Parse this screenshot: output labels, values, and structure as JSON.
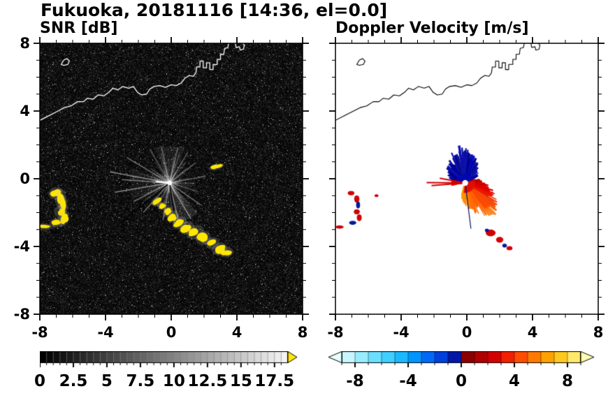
{
  "title": "Fukuoka, 20181116 [14:36, el=0.0]",
  "panels": {
    "snr": {
      "subtitle": "SNR [dB]"
    },
    "velocity": {
      "subtitle": "Doppler Velocity [m/s]"
    }
  },
  "axes": {
    "x_tick_values": [
      -8,
      -4,
      0,
      4,
      8
    ],
    "x_tick_labels": [
      "-8",
      "-4",
      "0",
      "4",
      "8"
    ],
    "y_tick_values": [
      8,
      4,
      0,
      -4,
      -8
    ],
    "y_tick_labels": [
      "8",
      "4",
      "0",
      "-4",
      "-8"
    ],
    "range": [
      -8,
      8
    ],
    "minor_step": 1
  },
  "colorbars": {
    "snr": {
      "min": 0,
      "max": 18.5,
      "segment": 0.5,
      "tick_values": [
        0,
        2.5,
        5,
        7.5,
        10,
        12.5,
        15,
        17.5
      ],
      "tick_labels": [
        "0",
        "2.5",
        "5",
        "7.5",
        "10",
        "12.5",
        "15",
        "17.5"
      ],
      "colormap": "grayscale black to white",
      "arrow_color": "#ffe800"
    },
    "velocity": {
      "min": -9,
      "max": 9,
      "segment": 1,
      "tick_values": [
        -8,
        -4,
        0,
        4,
        8
      ],
      "tick_labels": [
        "-8",
        "-4",
        "0",
        "4",
        "8"
      ],
      "left_arrow_color": "#e6ffff",
      "right_arrow_color": "#ffffb0",
      "colors": [
        "#c8f6ff",
        "#98ecff",
        "#6adfff",
        "#40cfff",
        "#1cb8ff",
        "#0096ff",
        "#006af8",
        "#0040dc",
        "#0018a8",
        "#8c0000",
        "#b00000",
        "#d40000",
        "#f22000",
        "#ff4e00",
        "#ff7a00",
        "#ffa200",
        "#ffc81e",
        "#ffe96a"
      ]
    }
  },
  "map": {
    "coastline_note": "coastline of Fukuoka bay across the north of the domain",
    "mainland": [
      [
        -8.0,
        3.45
      ],
      [
        -7.4,
        3.75
      ],
      [
        -7.0,
        3.95
      ],
      [
        -6.5,
        4.2
      ],
      [
        -6.1,
        4.3
      ],
      [
        -5.7,
        4.55
      ],
      [
        -5.35,
        4.55
      ],
      [
        -5.1,
        4.75
      ],
      [
        -4.75,
        4.7
      ],
      [
        -4.45,
        4.95
      ],
      [
        -4.1,
        4.9
      ],
      [
        -3.8,
        5.1
      ],
      [
        -3.55,
        5.35
      ],
      [
        -3.25,
        5.25
      ],
      [
        -2.95,
        5.45
      ],
      [
        -2.6,
        5.35
      ],
      [
        -2.3,
        5.45
      ],
      [
        -2.05,
        5.1
      ],
      [
        -1.8,
        4.95
      ],
      [
        -1.5,
        5.0
      ],
      [
        -1.3,
        5.3
      ],
      [
        -1.05,
        5.45
      ],
      [
        -0.7,
        5.5
      ],
      [
        -0.35,
        5.4
      ],
      [
        0.0,
        5.55
      ],
      [
        0.3,
        5.5
      ],
      [
        0.6,
        5.65
      ],
      [
        0.85,
        5.95
      ],
      [
        1.1,
        6.1
      ],
      [
        1.35,
        6.05
      ],
      [
        1.5,
        6.25
      ]
    ],
    "harbor": [
      [
        1.5,
        6.25
      ],
      [
        1.55,
        6.6
      ],
      [
        1.75,
        6.6
      ],
      [
        1.75,
        6.95
      ],
      [
        1.95,
        6.95
      ],
      [
        1.95,
        6.55
      ],
      [
        2.15,
        6.55
      ],
      [
        2.15,
        6.85
      ],
      [
        2.35,
        6.85
      ],
      [
        2.35,
        6.45
      ],
      [
        2.55,
        6.45
      ],
      [
        2.55,
        6.75
      ],
      [
        2.8,
        6.75
      ],
      [
        2.8,
        7.05
      ],
      [
        3.0,
        7.05
      ],
      [
        3.0,
        7.35
      ],
      [
        3.2,
        7.35
      ],
      [
        3.25,
        7.7
      ],
      [
        3.45,
        7.75
      ],
      [
        3.5,
        8.05
      ]
    ],
    "island": [
      [
        -6.7,
        6.75
      ],
      [
        -6.55,
        7.0
      ],
      [
        -6.35,
        7.1
      ],
      [
        -6.2,
        6.95
      ],
      [
        -6.3,
        6.75
      ],
      [
        -6.55,
        6.7
      ]
    ],
    "top_fragment": [
      [
        3.9,
        8.05
      ],
      [
        3.95,
        7.75
      ],
      [
        4.15,
        7.8
      ],
      [
        4.2,
        7.6
      ],
      [
        4.4,
        7.65
      ],
      [
        4.45,
        7.9
      ],
      [
        4.3,
        8.05
      ]
    ]
  },
  "chart_data": [
    {
      "type": "heatmap",
      "panel": "snr",
      "title": "SNR [dB]",
      "units": "dB",
      "xlim": [
        -8,
        8
      ],
      "ylim": [
        -8,
        8
      ],
      "background": "#000000",
      "coastline_color": "#ffffff",
      "radar_site": {
        "x": -0.1,
        "y": -0.25
      },
      "description": "Radar PPI of SNR: dark speckle-noise field, gray ground-clutter spokes radiating from the radar site, yellow (>17.5 dB) clutter patches in an arc southeast of the site and a cluster near x=-7 y=-1..-3, white coastline across the north.",
      "haze_wedges": [
        {
          "p1": [
            0.25,
            -2.6
          ],
          "p2": [
            1.75,
            -1.8
          ],
          "alpha": 0.1
        },
        {
          "p1": [
            -0.9,
            2.1
          ],
          "p2": [
            0.95,
            2.15
          ],
          "alpha": 0.07
        },
        {
          "p1": [
            -2.4,
            0.9
          ],
          "p2": [
            -2.3,
            -1.0
          ],
          "alpha": 0.05
        }
      ],
      "bright_spokes": [
        [
          -3.6,
          0.65,
          0.5
        ],
        [
          -3.35,
          -0.55,
          0.45
        ],
        [
          -2.6,
          1.5,
          0.4
        ],
        [
          -2.2,
          -1.1,
          0.4
        ],
        [
          -1.6,
          -1.75,
          0.38
        ],
        [
          -1.2,
          2.0,
          0.3
        ],
        [
          -0.5,
          2.15,
          0.32
        ],
        [
          0.5,
          2.1,
          0.3
        ],
        [
          1.1,
          1.8,
          0.3
        ],
        [
          1.6,
          1.2,
          0.3
        ],
        [
          2.2,
          0.4,
          0.32
        ],
        [
          1.9,
          -1.3,
          0.4
        ],
        [
          1.3,
          -2.1,
          0.45
        ],
        [
          0.6,
          -2.5,
          0.4
        ],
        [
          -0.4,
          -2.2,
          0.4
        ],
        [
          -2.9,
          0.2,
          0.45
        ]
      ],
      "shadow_lines": [
        [
          -2.95,
          -2.35
        ],
        [
          0.45,
          -2.95
        ]
      ],
      "center_flash": [
        -0.85,
        0.08
      ],
      "high_snr_value": ">17.5",
      "high_snr_color": "#ffe600",
      "high_snr_blobs": [
        [
          -7.05,
          -0.85,
          0.28,
          0.18,
          20
        ],
        [
          -6.75,
          -1.15,
          0.22,
          0.3,
          0
        ],
        [
          -6.6,
          -1.55,
          0.18,
          0.28,
          0
        ],
        [
          -6.75,
          -1.95,
          0.24,
          0.2,
          0
        ],
        [
          -6.55,
          -2.35,
          0.2,
          0.26,
          -20
        ],
        [
          -6.95,
          -2.6,
          0.3,
          0.15,
          10
        ],
        [
          -7.75,
          -2.85,
          0.3,
          0.12,
          0
        ],
        [
          -0.9,
          -1.35,
          0.22,
          0.14,
          35
        ],
        [
          -0.55,
          -1.6,
          0.18,
          0.12,
          35
        ],
        [
          -0.2,
          -1.95,
          0.22,
          0.15,
          40
        ],
        [
          0.1,
          -2.25,
          0.25,
          0.16,
          40
        ],
        [
          0.5,
          -2.6,
          0.3,
          0.18,
          35
        ],
        [
          0.95,
          -2.9,
          0.3,
          0.2,
          30
        ],
        [
          1.45,
          -3.15,
          0.35,
          0.2,
          25
        ],
        [
          1.95,
          -3.5,
          0.3,
          0.22,
          25
        ],
        [
          2.5,
          -3.8,
          0.28,
          0.18,
          20
        ],
        [
          2.95,
          -4.15,
          0.3,
          0.2,
          20
        ],
        [
          3.4,
          -4.35,
          0.25,
          0.15,
          15
        ],
        [
          2.75,
          0.7,
          0.3,
          0.1,
          15
        ]
      ]
    },
    {
      "type": "heatmap",
      "panel": "velocity",
      "title": "Doppler Velocity [m/s]",
      "units": "m/s",
      "xlim": [
        -8,
        8
      ],
      "ylim": [
        -8,
        8
      ],
      "background": "#ffffff",
      "coastline_color": "#000000",
      "radar_site": {
        "x": -0.1,
        "y": -0.25
      },
      "description": "Radar PPI of Doppler velocity: approaching (negative, dark blue) echoes fan north of the radar site, receding (positive, red to orange) echoes fan east-southeast, thin red streaks pointing west, small red/navy clutter patches matching the SNR arc.",
      "negative_fan": {
        "a0": -178,
        "a1": -22,
        "rmin": 0.2,
        "rmax": 2.3,
        "n": 170,
        "velocity_range": [
          -9,
          -2
        ],
        "colors": [
          "#00008b",
          "#0000a2",
          "#0410c2",
          "#10139b"
        ]
      },
      "positive_fan": {
        "a0": -16,
        "a1": 106,
        "rmin": 0.2,
        "rmax": 2.7,
        "n": 230,
        "velocity_range": [
          1,
          8
        ],
        "color_stops": [
          [
            -16,
            "#b40000"
          ],
          [
            15,
            "#e20000"
          ],
          [
            50,
            "#ff4b00"
          ],
          [
            80,
            "#ff7d00"
          ],
          [
            106,
            "#ff9e00"
          ]
        ],
        "tip_color": "#ffc030"
      },
      "west_streaks": [
        [
          -2.35,
          0.02
        ],
        [
          -2.05,
          -0.15
        ],
        [
          -1.55,
          0.28
        ]
      ],
      "west_wedge": {
        "a0": 168,
        "a1": 193,
        "r": 0.85,
        "color": "#d80000"
      },
      "shadow_lines": [
        [
          0.35,
          -2.7
        ]
      ],
      "patches": [
        [
          -7.05,
          -0.85,
          0.2,
          0.13,
          "#cf0000"
        ],
        [
          -6.7,
          -1.2,
          0.16,
          0.22,
          "#cf0000"
        ],
        [
          -6.62,
          -1.55,
          0.12,
          0.2,
          "#001a99"
        ],
        [
          -6.7,
          -1.95,
          0.18,
          0.15,
          "#cf0000"
        ],
        [
          -6.55,
          -2.3,
          0.15,
          0.2,
          "#cf0000"
        ],
        [
          -6.95,
          -2.6,
          0.22,
          0.12,
          "#001a99"
        ],
        [
          -7.75,
          -2.85,
          0.25,
          0.1,
          "#cf0000"
        ],
        [
          -5.5,
          -1.0,
          0.12,
          0.08,
          "#cf0000"
        ],
        [
          1.45,
          -3.2,
          0.3,
          0.2,
          "#d40000"
        ],
        [
          1.22,
          -3.05,
          0.12,
          0.1,
          "#001a99"
        ],
        [
          2.0,
          -3.6,
          0.22,
          0.17,
          "#d40000"
        ],
        [
          2.3,
          -3.95,
          0.14,
          0.11,
          "#001a99"
        ],
        [
          2.6,
          -4.1,
          0.18,
          0.12,
          "#d40000"
        ]
      ]
    }
  ]
}
